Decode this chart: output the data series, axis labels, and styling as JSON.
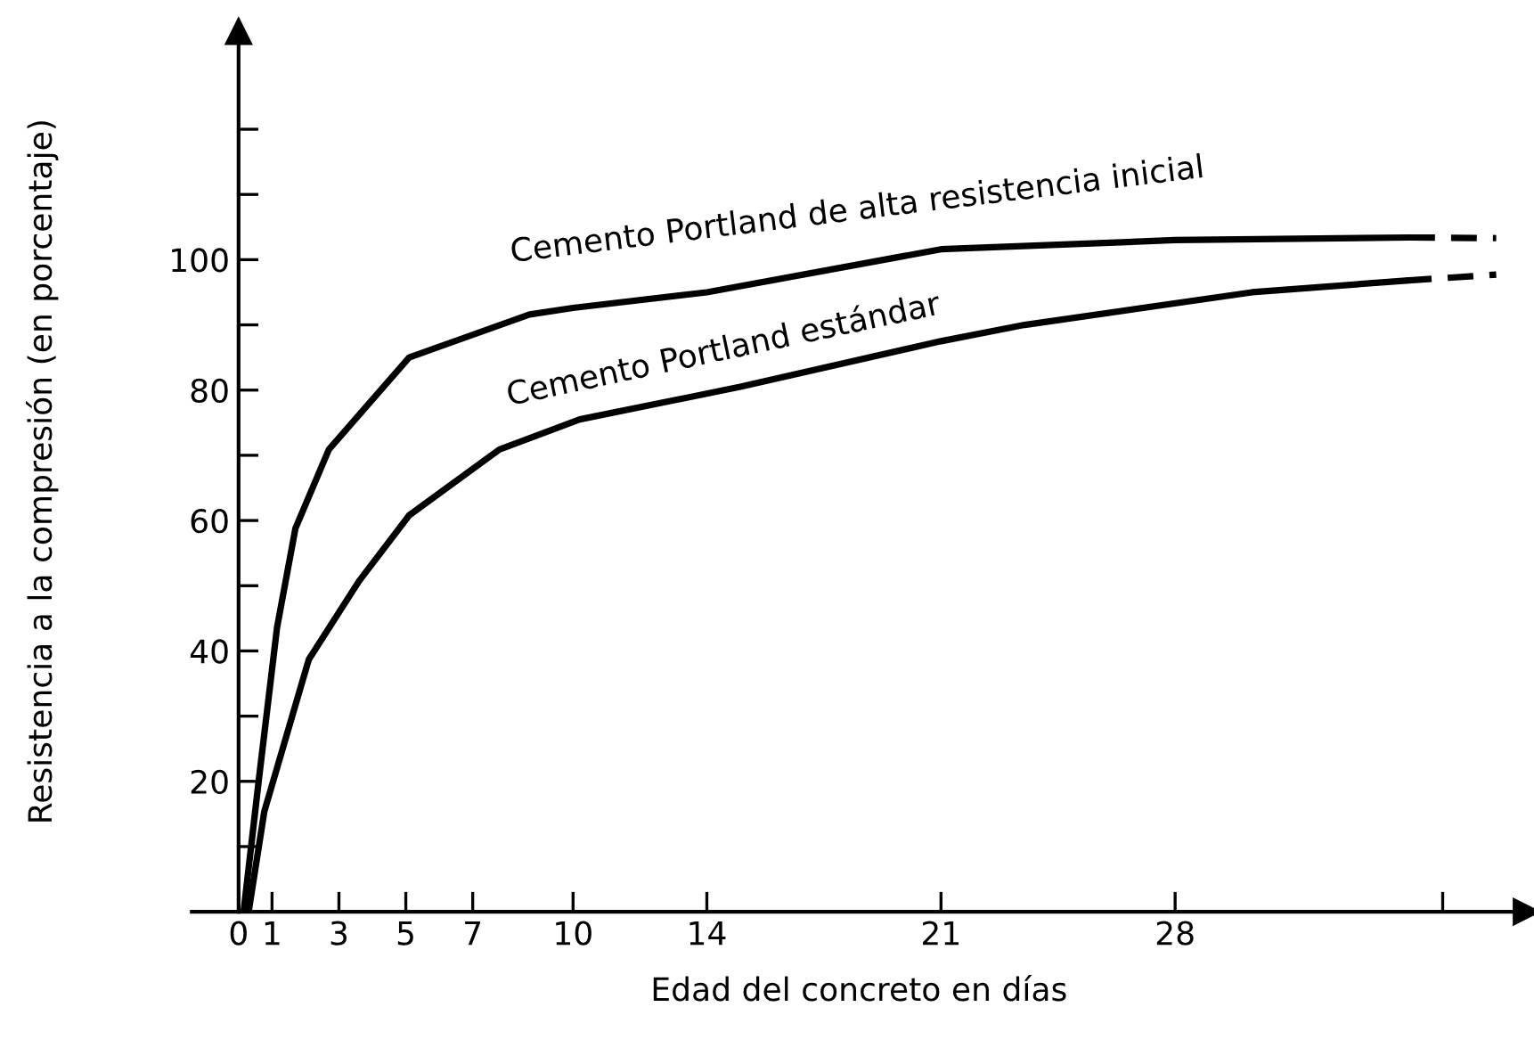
{
  "chart_data": {
    "type": "line",
    "xlabel": "Edad del concreto en días",
    "ylabel": "Resistencia a la compresión (en porcentaje)",
    "xlim": [
      -1.4,
      38.5
    ],
    "ylim": [
      0,
      135
    ],
    "xticks": [
      0,
      1,
      3,
      5,
      7,
      10,
      14,
      21,
      28,
      {
        "value": 36,
        "label": null
      }
    ],
    "yticks": [
      {
        "value": 10,
        "label": null
      },
      20,
      {
        "value": 30,
        "label": null
      },
      40,
      {
        "value": 50,
        "label": null
      },
      60,
      {
        "value": 70,
        "label": null
      },
      80,
      {
        "value": 90,
        "label": null
      },
      100,
      {
        "value": 110,
        "label": null
      },
      {
        "value": 120,
        "label": null
      }
    ],
    "grid": false,
    "legend": false,
    "marker": "none",
    "series": [
      {
        "name": "Cemento Portland de alta resistencia inicial",
        "color": "#000000",
        "line_style": "solid",
        "x": [
          0.15,
          0.6,
          1.15,
          1.7,
          2.7,
          5.1,
          8.7,
          10,
          14,
          21,
          28,
          35
        ],
        "values": [
          0,
          20,
          43.6,
          58.8,
          70.9,
          85,
          91.6,
          92.6,
          95,
          101.6,
          103,
          103.4
        ]
      },
      {
        "color": "#000000",
        "line_style": "dashed",
        "x": [
          35,
          37.6
        ],
        "values": [
          103.4,
          103.3
        ]
      },
      {
        "name": "Cemento Portland estándar",
        "color": "#000000",
        "line_style": "solid",
        "x": [
          0.3,
          0.77,
          2.1,
          3.6,
          5.1,
          7.8,
          10.2,
          15,
          21,
          23.5,
          30.3,
          34.9
        ],
        "values": [
          0,
          15.4,
          38.7,
          50.7,
          60.8,
          70.9,
          75.5,
          80.5,
          87.5,
          90,
          95,
          96.8
        ]
      },
      {
        "color": "#000000",
        "line_style": "dashed",
        "x": [
          34.9,
          37.6
        ],
        "values": [
          96.8,
          97.7
        ]
      }
    ]
  }
}
